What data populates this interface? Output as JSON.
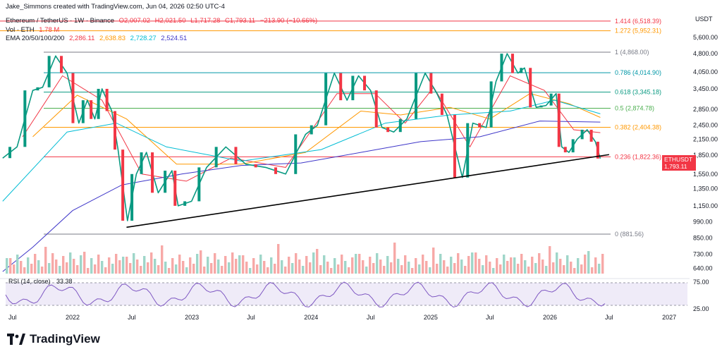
{
  "header": {
    "creator_line": "Jake_Simmons created with TradingView.com, Jun 04, 2026 02:50 UTC-4",
    "symbol_line": "Ethereum / TetherUS · 1W · Binance",
    "ohlc": {
      "o": "O2,007.02",
      "h": "H2,021.50",
      "l": "L1,717.28",
      "c": "C1,793.11",
      "chg": "−213.90 (−10.66%)"
    },
    "vol_label": "Vol · ETH",
    "vol_value": "1.78 M",
    "ema_label": "EMA 20/50/100/200",
    "ema_values": [
      "2,286.11",
      "2,638.83",
      "2,728.27",
      "2,524.51"
    ],
    "ema_colors": [
      "#f23645",
      "#ff9800",
      "#00bcd4",
      "#3f37c9"
    ]
  },
  "currency": "USDT",
  "price_tag": {
    "symbol": "ETHUSDT",
    "price": "1,793.11",
    "countdown": "3d 18h"
  },
  "rsi_label": "RSI (14, close)",
  "rsi_value": "33.38",
  "brand": "TradingView",
  "chart_data": {
    "type": "line",
    "title": "Ethereum / TetherUS · 1W · Binance",
    "xlabel": "",
    "ylabel": "USDT",
    "y_scale": "log",
    "ylim": [
      600,
      7000
    ],
    "y_ticks": [
      "5,600.00",
      "4,800.00",
      "4,050.00",
      "3,450.00",
      "2,850.00",
      "2,450.00",
      "2,150.00",
      "1,850.00",
      "1,550.00",
      "1,350.00",
      "1,150.00",
      "990.00",
      "850.00",
      "730.00",
      "640.00"
    ],
    "x_ticks": [
      "Jul",
      "2022",
      "Jul",
      "2023",
      "Jul",
      "2024",
      "Jul",
      "2025",
      "Jul",
      "2026",
      "Jul",
      "2027"
    ],
    "fib_levels": [
      {
        "ratio": "1.414",
        "price": 6518.39,
        "label": "1.414 (6,518.39)",
        "color": "#f23645"
      },
      {
        "ratio": "1.272",
        "price": 5952.31,
        "label": "1.272 (5,952.31)",
        "color": "#ff9800"
      },
      {
        "ratio": "1",
        "price": 4868.0,
        "label": "1 (4,868.00)",
        "color": "#787b86"
      },
      {
        "ratio": "0.786",
        "price": 4014.9,
        "label": "0.786 (4,014.90)",
        "color": "#0097a7"
      },
      {
        "ratio": "0.618",
        "price": 3345.18,
        "label": "0.618 (3,345.18)",
        "color": "#089981"
      },
      {
        "ratio": "0.5",
        "price": 2874.78,
        "label": "0.5 (2,874.78)",
        "color": "#4caf50"
      },
      {
        "ratio": "0.382",
        "price": 2404.38,
        "label": "0.382 (2,404.38)",
        "color": "#ff9800"
      },
      {
        "ratio": "0.236",
        "price": 1822.36,
        "label": "0.236 (1,822.36)",
        "color": "#f23645"
      },
      {
        "ratio": "0",
        "price": 881.56,
        "label": "0 (881.56)",
        "color": "#787b86"
      }
    ],
    "trendline": {
      "from": {
        "date": "2022-06-15",
        "price": 940
      },
      "to": {
        "date": "2026-07-01",
        "price": 1860
      }
    },
    "price_path": [
      {
        "date": "2021-06-01",
        "price": 1800
      },
      {
        "date": "2021-07-15",
        "price": 2000
      },
      {
        "date": "2021-09-01",
        "price": 3400
      },
      {
        "date": "2021-10-01",
        "price": 3500
      },
      {
        "date": "2021-11-10",
        "price": 4700
      },
      {
        "date": "2021-12-15",
        "price": 4000
      },
      {
        "date": "2022-01-20",
        "price": 2500
      },
      {
        "date": "2022-02-15",
        "price": 3100
      },
      {
        "date": "2022-03-10",
        "price": 2600
      },
      {
        "date": "2022-04-01",
        "price": 3450
      },
      {
        "date": "2022-05-01",
        "price": 2800
      },
      {
        "date": "2022-05-20",
        "price": 1950
      },
      {
        "date": "2022-06-18",
        "price": 1000
      },
      {
        "date": "2022-07-15",
        "price": 1550
      },
      {
        "date": "2022-08-15",
        "price": 1900
      },
      {
        "date": "2022-09-20",
        "price": 1300
      },
      {
        "date": "2022-11-01",
        "price": 1600
      },
      {
        "date": "2022-11-20",
        "price": 1150
      },
      {
        "date": "2022-12-31",
        "price": 1200
      },
      {
        "date": "2023-02-15",
        "price": 1650
      },
      {
        "date": "2023-04-15",
        "price": 2000
      },
      {
        "date": "2023-06-15",
        "price": 1700
      },
      {
        "date": "2023-08-15",
        "price": 1650
      },
      {
        "date": "2023-10-15",
        "price": 1550
      },
      {
        "date": "2023-12-15",
        "price": 2250
      },
      {
        "date": "2024-01-20",
        "price": 2450
      },
      {
        "date": "2024-03-12",
        "price": 4000
      },
      {
        "date": "2024-04-20",
        "price": 3100
      },
      {
        "date": "2024-05-25",
        "price": 3900
      },
      {
        "date": "2024-07-01",
        "price": 3400
      },
      {
        "date": "2024-08-05",
        "price": 2400
      },
      {
        "date": "2024-09-10",
        "price": 2300
      },
      {
        "date": "2024-10-20",
        "price": 2600
      },
      {
        "date": "2024-12-15",
        "price": 4000
      },
      {
        "date": "2025-01-20",
        "price": 3300
      },
      {
        "date": "2025-02-20",
        "price": 2700
      },
      {
        "date": "2025-04-08",
        "price": 1500
      },
      {
        "date": "2025-05-10",
        "price": 2500
      },
      {
        "date": "2025-06-20",
        "price": 2400
      },
      {
        "date": "2025-07-20",
        "price": 3700
      },
      {
        "date": "2025-08-23",
        "price": 4800
      },
      {
        "date": "2025-09-25",
        "price": 4000
      },
      {
        "date": "2025-10-15",
        "price": 4200
      },
      {
        "date": "2025-11-20",
        "price": 2900
      },
      {
        "date": "2025-12-20",
        "price": 2950
      },
      {
        "date": "2026-01-20",
        "price": 3300
      },
      {
        "date": "2026-02-06",
        "price": 2000
      },
      {
        "date": "2026-02-28",
        "price": 1900
      },
      {
        "date": "2026-03-25",
        "price": 2150
      },
      {
        "date": "2026-04-25",
        "price": 2350
      },
      {
        "date": "2026-05-20",
        "price": 2100
      },
      {
        "date": "2026-06-04",
        "price": 1793.11
      }
    ],
    "series": [
      {
        "name": "EMA 20",
        "color": "#f23645",
        "points": [
          {
            "date": "2021-08-01",
            "price": 2200
          },
          {
            "date": "2021-12-01",
            "price": 3900
          },
          {
            "date": "2022-04-01",
            "price": 3100
          },
          {
            "date": "2022-08-01",
            "price": 1550
          },
          {
            "date": "2022-12-15",
            "price": 1450
          },
          {
            "date": "2023-05-01",
            "price": 1800
          },
          {
            "date": "2023-10-15",
            "price": 1650
          },
          {
            "date": "2024-03-20",
            "price": 3300
          },
          {
            "date": "2024-07-15",
            "price": 3300
          },
          {
            "date": "2024-10-15",
            "price": 2500
          },
          {
            "date": "2025-01-10",
            "price": 3500
          },
          {
            "date": "2025-05-01",
            "price": 2000
          },
          {
            "date": "2025-09-01",
            "price": 3900
          },
          {
            "date": "2025-12-15",
            "price": 3400
          },
          {
            "date": "2026-03-15",
            "price": 2350
          },
          {
            "date": "2026-06-04",
            "price": 2286.11
          }
        ]
      },
      {
        "name": "EMA 50",
        "color": "#ff9800",
        "points": [
          {
            "date": "2021-09-01",
            "price": 2200
          },
          {
            "date": "2022-01-15",
            "price": 3250
          },
          {
            "date": "2022-06-15",
            "price": 2600
          },
          {
            "date": "2022-11-15",
            "price": 1700
          },
          {
            "date": "2023-06-01",
            "price": 1700
          },
          {
            "date": "2023-12-15",
            "price": 1900
          },
          {
            "date": "2024-06-01",
            "price": 2800
          },
          {
            "date": "2024-10-01",
            "price": 2700
          },
          {
            "date": "2025-03-01",
            "price": 2900
          },
          {
            "date": "2025-07-01",
            "price": 2600
          },
          {
            "date": "2025-11-01",
            "price": 3300
          },
          {
            "date": "2026-03-01",
            "price": 3000
          },
          {
            "date": "2026-06-04",
            "price": 2638.83
          }
        ]
      },
      {
        "name": "EMA 100",
        "color": "#00bcd4",
        "points": [
          {
            "date": "2021-06-01",
            "price": 1200
          },
          {
            "date": "2021-12-15",
            "price": 2300
          },
          {
            "date": "2022-05-15",
            "price": 2500
          },
          {
            "date": "2022-10-15",
            "price": 2000
          },
          {
            "date": "2023-06-01",
            "price": 1750
          },
          {
            "date": "2024-02-01",
            "price": 1950
          },
          {
            "date": "2024-08-15",
            "price": 2500
          },
          {
            "date": "2025-03-01",
            "price": 2700
          },
          {
            "date": "2025-09-01",
            "price": 2800
          },
          {
            "date": "2026-01-15",
            "price": 3100
          },
          {
            "date": "2026-06-04",
            "price": 2728.27
          }
        ]
      },
      {
        "name": "EMA 200",
        "color": "#3f37c9",
        "points": [
          {
            "date": "2021-06-01",
            "price": 620
          },
          {
            "date": "2021-09-01",
            "price": 780
          },
          {
            "date": "2022-01-01",
            "price": 1100
          },
          {
            "date": "2022-06-01",
            "price": 1400
          },
          {
            "date": "2022-12-01",
            "price": 1550
          },
          {
            "date": "2023-06-01",
            "price": 1680
          },
          {
            "date": "2023-12-01",
            "price": 1720
          },
          {
            "date": "2024-06-01",
            "price": 1900
          },
          {
            "date": "2024-12-01",
            "price": 2100
          },
          {
            "date": "2025-06-01",
            "price": 2200
          },
          {
            "date": "2025-12-01",
            "price": 2550
          },
          {
            "date": "2026-06-04",
            "price": 2524.51
          }
        ]
      }
    ],
    "annotations": [
      "ETHUSDT"
    ]
  }
}
